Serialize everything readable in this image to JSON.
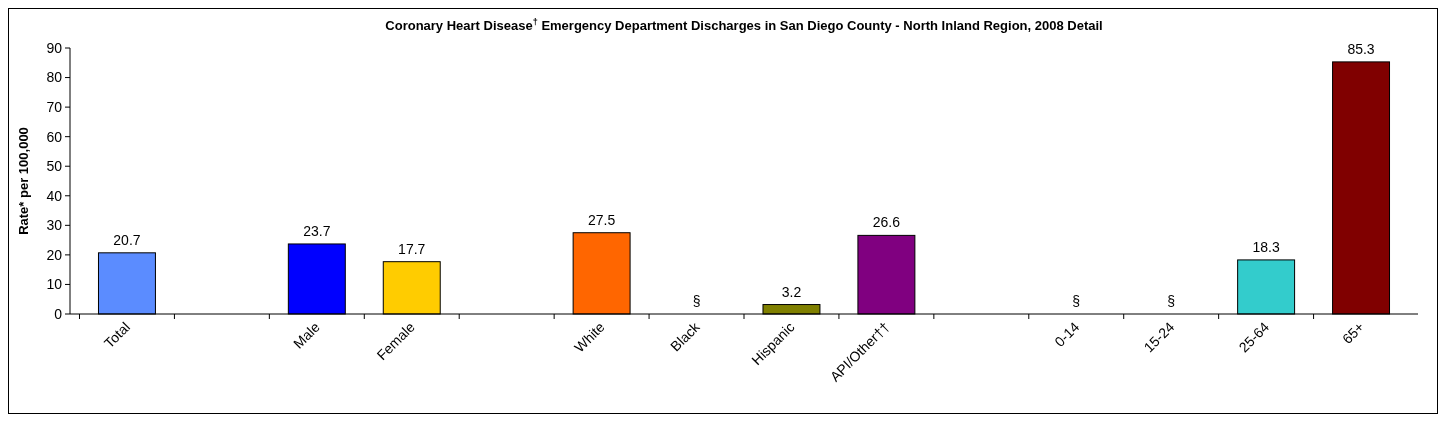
{
  "chart_data": {
    "type": "bar",
    "title": "Coronary Heart Disease$^{†}$ Emergency Department Discharges in San Diego County - North Inland Region, 2008 Detail",
    "ylabel": "Rate* per 100,000",
    "categories": [
      "Total",
      null,
      "Male",
      "Female",
      null,
      "White",
      "Black",
      "Hispanic",
      "API/Other††",
      null,
      "0-14",
      "15-24",
      "25-64",
      "65+"
    ],
    "values": [
      20.7,
      null,
      23.7,
      17.7,
      null,
      27.5,
      null,
      3.2,
      26.6,
      null,
      null,
      null,
      18.3,
      85.3
    ],
    "colors": [
      "#5b8cff",
      null,
      "#0000ff",
      "#ffcc00",
      null,
      "#ff6600",
      null,
      "#808000",
      "#800080",
      null,
      null,
      null,
      "#33cccc",
      "#800000"
    ],
    "value_labels": [
      "20.7",
      null,
      "23.7",
      "17.7",
      null,
      "27.5",
      "§",
      "3.2",
      "26.6",
      null,
      "§",
      "§",
      "18.3",
      "85.3"
    ],
    "ylim": [
      0,
      90
    ],
    "yticks": [
      0,
      10,
      20,
      30,
      40,
      50,
      60,
      70,
      80,
      90
    ],
    "grid": false
  }
}
